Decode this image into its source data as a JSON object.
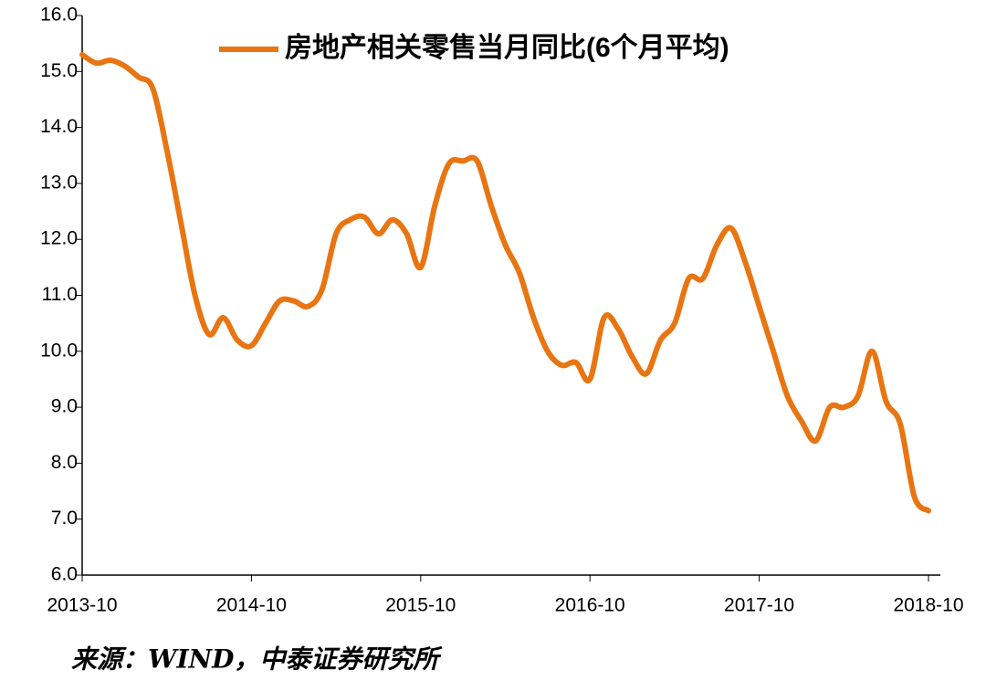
{
  "chart_data": {
    "type": "line",
    "title": "房地产相关零售当月同比(6个月平均)",
    "source": "来源：WIND，中泰证券研究所",
    "categories": [
      "2013-10",
      null,
      null,
      null,
      null,
      null,
      null,
      null,
      null,
      null,
      null,
      null,
      "2014-10",
      null,
      null,
      null,
      null,
      null,
      null,
      null,
      null,
      null,
      null,
      null,
      "2015-10",
      null,
      null,
      null,
      null,
      null,
      null,
      null,
      null,
      null,
      null,
      null,
      "2016-10",
      null,
      null,
      null,
      null,
      null,
      null,
      null,
      null,
      null,
      null,
      null,
      "2017-10",
      null,
      null,
      null,
      null,
      null,
      null,
      null,
      null,
      null,
      null,
      null,
      "2018-10"
    ],
    "series": [
      {
        "name": "房地产相关零售当月同比(6个月平均)",
        "color": "#e87511",
        "values": [
          15.3,
          15.15,
          15.2,
          15.1,
          14.9,
          14.7,
          13.6,
          12.3,
          11.0,
          10.3,
          10.6,
          10.2,
          10.1,
          10.5,
          10.9,
          10.9,
          10.8,
          11.1,
          12.1,
          12.35,
          12.4,
          12.1,
          12.35,
          12.1,
          11.5,
          12.6,
          13.35,
          13.4,
          13.4,
          12.6,
          11.9,
          11.4,
          10.6,
          10.0,
          9.75,
          9.8,
          9.5,
          10.6,
          10.4,
          9.9,
          9.6,
          10.2,
          10.5,
          11.3,
          11.3,
          11.9,
          12.2,
          11.6,
          10.8,
          10.0,
          9.2,
          8.75,
          8.4,
          9.0,
          9.0,
          9.2,
          10.0,
          9.1,
          8.7,
          7.4,
          7.15
        ]
      }
    ],
    "ylim": [
      6,
      16
    ],
    "yticks": [
      {
        "value": 6,
        "label": "6.0"
      },
      {
        "value": 7,
        "label": "7.0"
      },
      {
        "value": 8,
        "label": "8.0"
      },
      {
        "value": 9,
        "label": "9.0"
      },
      {
        "value": 10,
        "label": "10.0"
      },
      {
        "value": 11,
        "label": "11.0"
      },
      {
        "value": 12,
        "label": "12.0"
      },
      {
        "value": 13,
        "label": "13.0"
      },
      {
        "value": 14,
        "label": "14.0"
      },
      {
        "value": 15,
        "label": "15.0"
      },
      {
        "value": 16,
        "label": "16.0"
      }
    ],
    "legend": "top"
  }
}
